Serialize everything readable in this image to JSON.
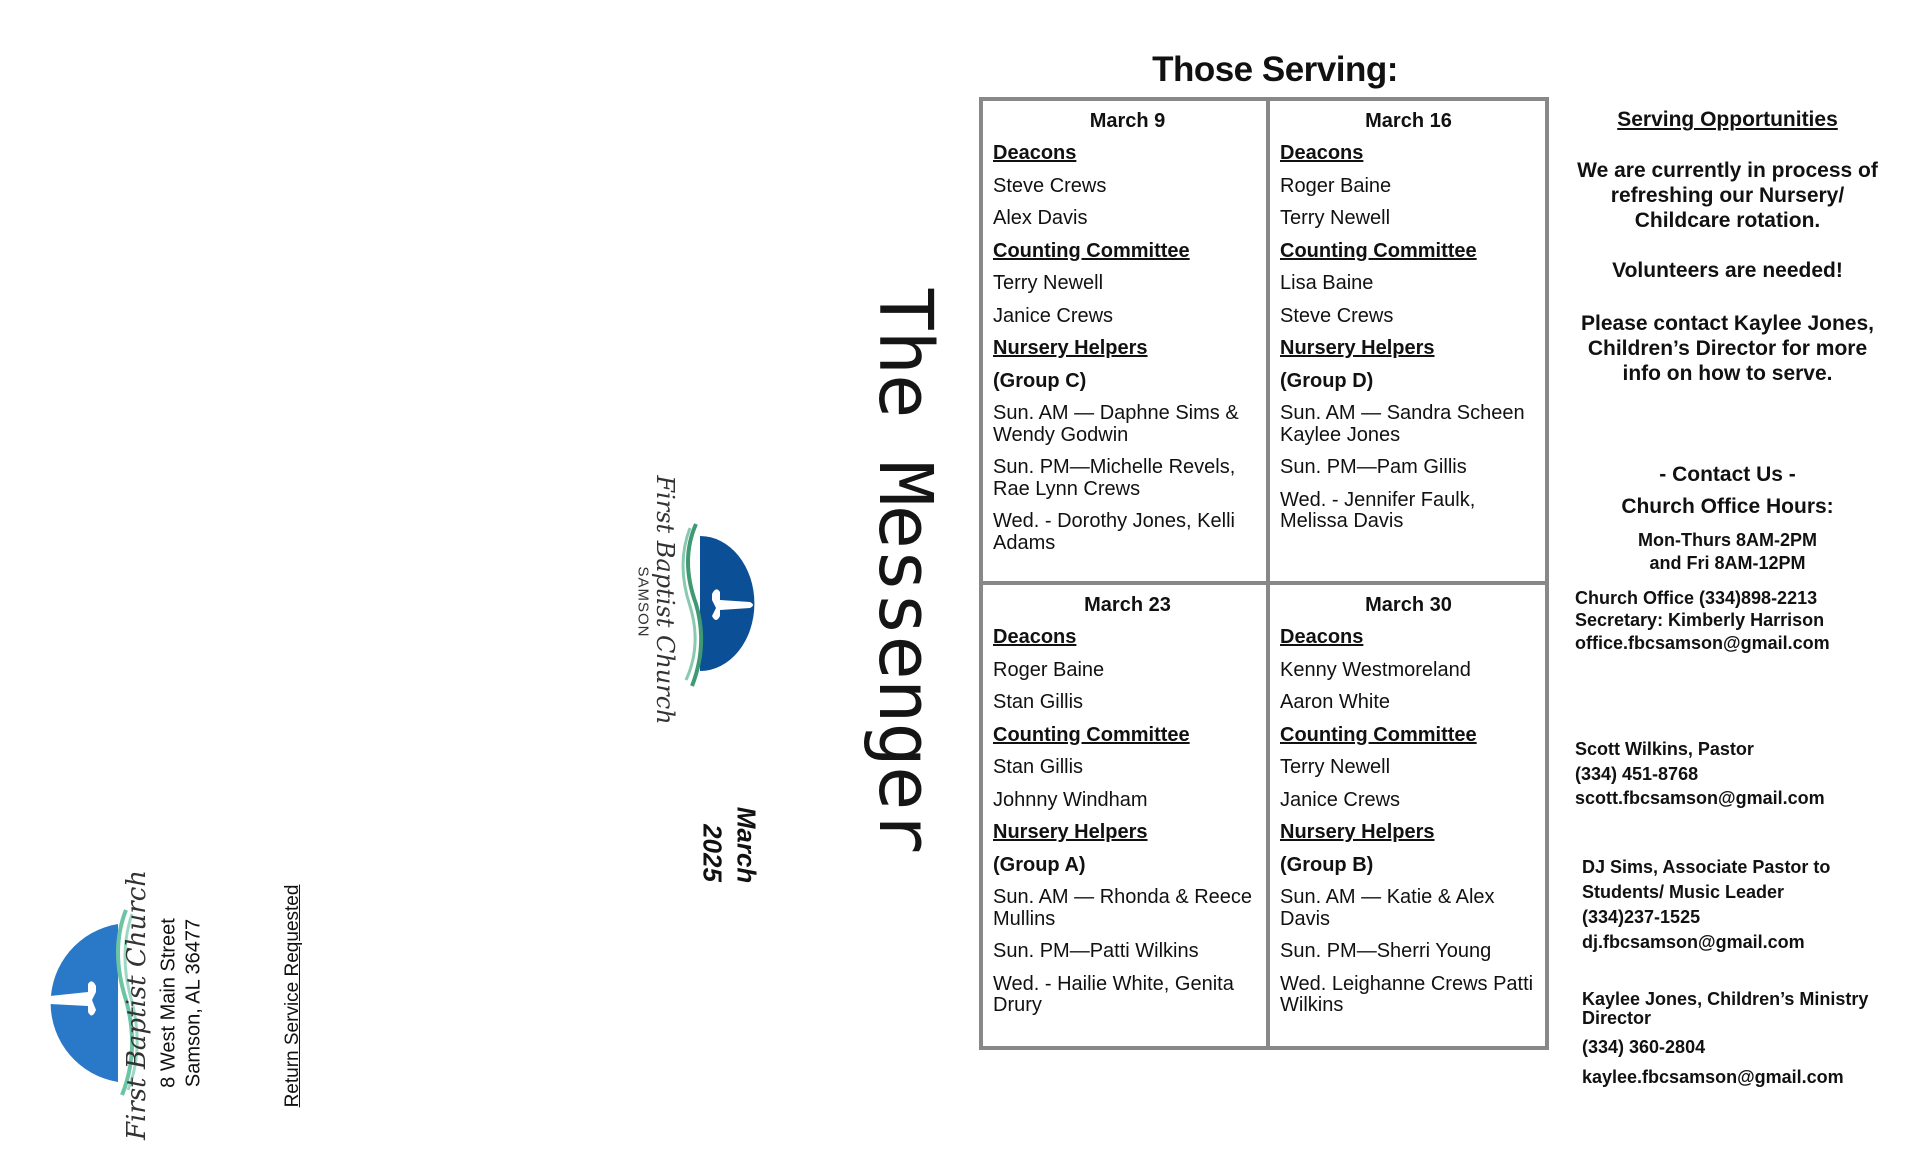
{
  "mailing_panel": {
    "logo_text": "First Baptist Church",
    "address_line1": "8 West Main Street",
    "address_line2": "Samson, AL 36477",
    "return_notice": "Return Service Requested"
  },
  "cover": {
    "title": "The Messenger",
    "logo_text": "First Baptist Church",
    "logo_subtext": "SAMSON",
    "issue_month": "March",
    "issue_year": "2025",
    "logo_blue": "#0b4f96",
    "logo_green": "#3f9a73"
  },
  "serving": {
    "title": "Those Serving:",
    "weeks": [
      {
        "date": "March 9",
        "deacons_label": "Deacons",
        "deacons": [
          "Steve Crews",
          "Alex Davis"
        ],
        "counting_label": "Counting Committee",
        "counting": [
          "Terry Newell",
          "Janice Crews"
        ],
        "nursery_label": "Nursery Helpers",
        "group": "(Group C)",
        "nursery": [
          "Sun. AM — Daphne Sims & Wendy Godwin",
          "Sun. PM—Michelle Revels, Rae Lynn Crews",
          "Wed. - Dorothy Jones, Kelli Adams"
        ]
      },
      {
        "date": "March 16",
        "deacons_label": "Deacons",
        "deacons": [
          "Roger Baine",
          "Terry Newell"
        ],
        "counting_label": "Counting Committee",
        "counting": [
          "Lisa Baine",
          "Steve Crews"
        ],
        "nursery_label": "Nursery Helpers",
        "group": "(Group D)",
        "nursery": [
          "Sun. AM — Sandra Scheen Kaylee Jones",
          "Sun. PM—Pam Gillis",
          "Wed. - Jennifer Faulk, Melissa Davis"
        ]
      },
      {
        "date": "March 23",
        "deacons_label": "Deacons",
        "deacons": [
          "Roger Baine",
          "Stan Gillis"
        ],
        "counting_label": "Counting Committee",
        "counting": [
          "Stan Gillis",
          "Johnny Windham"
        ],
        "nursery_label": "Nursery Helpers",
        "group": "(Group A)",
        "nursery": [
          "Sun. AM — Rhonda & Reece Mullins",
          "Sun. PM—Patti Wilkins",
          "Wed. - Hailie White, Genita Drury"
        ]
      },
      {
        "date": "March 30",
        "deacons_label": "Deacons",
        "deacons": [
          "Kenny Westmoreland",
          "Aaron White"
        ],
        "counting_label": "Counting Committee",
        "counting": [
          "Terry Newell",
          "Janice Crews"
        ],
        "nursery_label": "Nursery Helpers",
        "group": "(Group B)",
        "nursery": [
          "Sun. AM — Katie & Alex Davis",
          "Sun. PM—Sherri Young",
          "Wed. Leighanne Crews Patti Wilkins"
        ]
      }
    ]
  },
  "opportunities": {
    "heading": "Serving Opportunities",
    "para1": "We are currently in process of refreshing our Nursery/ Childcare rotation.",
    "para2": "Volunteers are needed!",
    "para3": "Please contact Kaylee Jones, Children’s Director for more info on how to serve."
  },
  "contact": {
    "heading": "- Contact Us -",
    "hours_label": "Church Office Hours:",
    "hours_line1": "Mon-Thurs 8AM-2PM",
    "hours_line2": "and Fri 8AM-12PM",
    "office_phone": "Church Office (334)898-2213",
    "secretary": "Secretary: Kimberly Harrison",
    "office_email": "office.fbcsamson@gmail.com",
    "staff": [
      {
        "title": "Scott Wilkins, Pastor",
        "phone": "(334) 451-8768",
        "email": "scott.fbcsamson@gmail.com"
      },
      {
        "title": "DJ Sims, Associate Pastor to",
        "title2": "Students/ Music Leader",
        "phone": "(334)237-1525",
        "email": "dj.fbcsamson@gmail.com"
      },
      {
        "title": "Kaylee Jones, Children’s Ministry Director",
        "phone": "(334) 360-2804",
        "email": "kaylee.fbcsamson@gmail.com"
      }
    ]
  }
}
